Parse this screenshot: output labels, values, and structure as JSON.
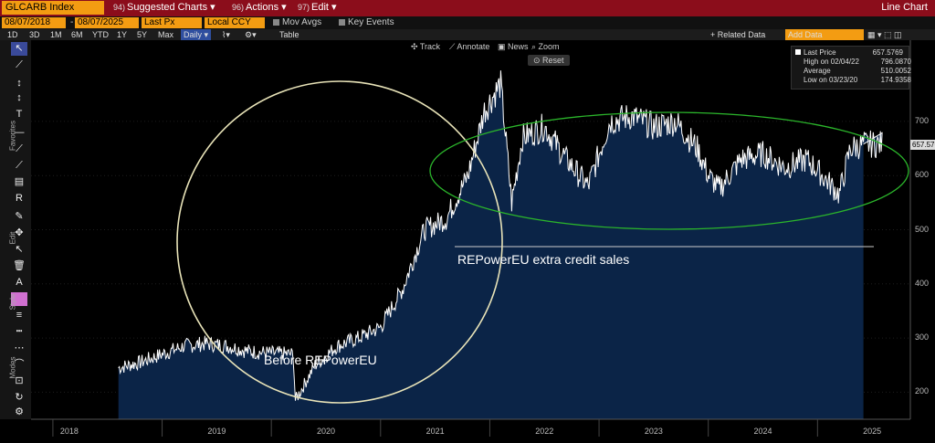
{
  "topbar": {
    "ticker": "GLCARB Index",
    "menus": [
      {
        "num": "94)",
        "label": "Suggested Charts"
      },
      {
        "num": "96)",
        "label": "Actions"
      },
      {
        "num": "97)",
        "label": "Edit"
      }
    ],
    "chart_type": "Line Chart"
  },
  "controls": {
    "start_date": "08/07/2018",
    "end_date": "08/07/2025",
    "field": "Last Px",
    "currency": "Local CCY",
    "mov_avgs": "Mov Avgs",
    "key_events": "Key Events"
  },
  "periods": [
    "1D",
    "3D",
    "1M",
    "6M",
    "YTD",
    "1Y",
    "5Y",
    "Max"
  ],
  "frequency": "Daily",
  "table_label": "Table",
  "related_data": "+ Related Data",
  "add_data_placeholder": "Add Data",
  "chart_controls": {
    "track": "Track",
    "annotate": "Annotate",
    "news": "News",
    "zoom": "Zoom",
    "reset": "Reset"
  },
  "legend": {
    "last_label": "Last Price",
    "last_value": "657.5769",
    "high_label": "High on 02/04/22",
    "high_value": "796.0870",
    "avg_label": "Average",
    "avg_value": "510.0052",
    "low_label": "Low on 03/23/20",
    "low_value": "174.9358"
  },
  "side_labels": {
    "favorites": "Favorites",
    "edit": "Edit",
    "style": "Style",
    "modes": "Modes"
  },
  "annotations": {
    "before": "Before REPowerEU",
    "extra": "REPowerEU extra credit sales"
  },
  "last_badge": "657.5769",
  "colors": {
    "area": "#0b2447",
    "line": "#ffffff",
    "circle": "#e8e3b8",
    "ellipse": "#2bb52b"
  },
  "chart_data": {
    "type": "area",
    "ylim": [
      150,
      850
    ],
    "yticks": [
      200,
      300,
      400,
      500,
      600,
      700
    ],
    "xticks": [
      "2018",
      "2019",
      "2020",
      "2021",
      "2022",
      "2023",
      "2024",
      "2025"
    ],
    "x": [
      2018.6,
      2018.8,
      2019.0,
      2019.2,
      2019.4,
      2019.6,
      2019.8,
      2020.0,
      2020.2,
      2020.22,
      2020.4,
      2020.6,
      2020.8,
      2021.0,
      2021.2,
      2021.4,
      2021.6,
      2021.8,
      2021.95,
      2022.1,
      2022.2,
      2022.3,
      2022.5,
      2022.7,
      2022.9,
      2023.1,
      2023.3,
      2023.5,
      2023.7,
      2023.9,
      2024.0,
      2024.1,
      2024.3,
      2024.5,
      2024.7,
      2024.9,
      2025.0,
      2025.2,
      2025.3,
      2025.42,
      2025.6
    ],
    "y": [
      245,
      255,
      270,
      285,
      290,
      285,
      275,
      272,
      270,
      185,
      250,
      285,
      300,
      320,
      390,
      500,
      520,
      600,
      720,
      770,
      550,
      670,
      690,
      630,
      580,
      700,
      710,
      690,
      700,
      650,
      600,
      575,
      630,
      640,
      615,
      630,
      610,
      565,
      650,
      658,
      658
    ]
  }
}
